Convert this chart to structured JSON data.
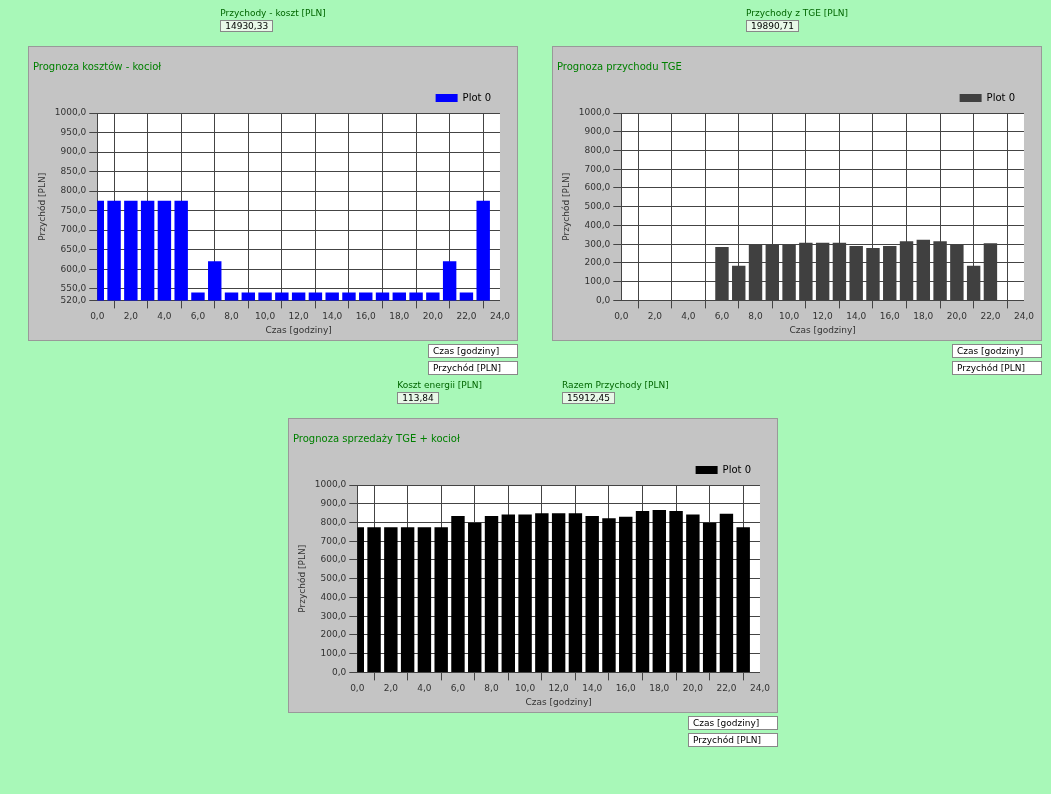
{
  "chart_data": [
    {
      "type": "bar",
      "title": "Prognoza kosztów - kocioł",
      "xlabel": "Czas [godziny]",
      "ylabel": "Przychód [PLN]",
      "annotations": [
        "Przychody - koszt [PLN]",
        "14930,33",
        "Czas [godziny]",
        "Przychód [PLN]"
      ],
      "x": [
        0,
        1,
        2,
        3,
        4,
        5,
        6,
        7,
        8,
        9,
        10,
        11,
        12,
        13,
        14,
        15,
        16,
        17,
        18,
        19,
        20,
        21,
        22,
        23
      ],
      "series": [
        {
          "name": "Plot 0",
          "color": "#0000ff",
          "values": [
            775,
            775,
            775,
            775,
            775,
            775,
            540,
            620,
            540,
            540,
            540,
            540,
            540,
            540,
            540,
            540,
            540,
            540,
            540,
            540,
            540,
            620,
            540,
            775
          ]
        }
      ],
      "xlim": [
        0,
        24
      ],
      "xticks": [
        {
          "value": 0,
          "label": "0,0"
        },
        {
          "value": 2,
          "label": "2,0"
        },
        {
          "value": 4,
          "label": "4,0"
        },
        {
          "value": 6,
          "label": "6,0"
        },
        {
          "value": 8,
          "label": "8,0"
        },
        {
          "value": 10,
          "label": "10,0"
        },
        {
          "value": 12,
          "label": "12,0"
        },
        {
          "value": 14,
          "label": "14,0"
        },
        {
          "value": 16,
          "label": "16,0"
        },
        {
          "value": 18,
          "label": "18,0"
        },
        {
          "value": 20,
          "label": "20,0"
        },
        {
          "value": 22,
          "label": "22,0"
        },
        {
          "value": 24,
          "label": "24,0"
        }
      ],
      "ylim": [
        520,
        1000
      ],
      "yticks": [
        {
          "value": 520,
          "label": "520,0"
        },
        {
          "value": 550,
          "label": "550,0"
        },
        {
          "value": 600,
          "label": "600,0"
        },
        {
          "value": 650,
          "label": "650,0"
        },
        {
          "value": 700,
          "label": "700,0"
        },
        {
          "value": 750,
          "label": "750,0"
        },
        {
          "value": 800,
          "label": "800,0"
        },
        {
          "value": 850,
          "label": "850,0"
        },
        {
          "value": 900,
          "label": "900,0"
        },
        {
          "value": 950,
          "label": "950,0"
        },
        {
          "value": 1000,
          "label": "1000,0"
        }
      ],
      "grid": true,
      "legend": "top right"
    },
    {
      "type": "bar",
      "title": "Prognoza przychodu TGE",
      "xlabel": "Czas [godziny]",
      "ylabel": "Przychód [PLN]",
      "annotations": [
        "Przychody z TGE [PLN]",
        "19890,71",
        "Czas [godziny]",
        "Przychód [PLN]"
      ],
      "x": [
        0,
        1,
        2,
        3,
        4,
        5,
        6,
        7,
        8,
        9,
        10,
        11,
        12,
        13,
        14,
        15,
        16,
        17,
        18,
        19,
        20,
        21,
        22,
        23
      ],
      "series": [
        {
          "name": "Plot 0",
          "color": "#404040",
          "values": [
            0,
            0,
            0,
            0,
            0,
            0,
            285,
            185,
            297,
            297,
            297,
            307,
            307,
            307,
            290,
            280,
            290,
            315,
            323,
            315,
            297,
            185,
            305,
            0
          ]
        }
      ],
      "xlim": [
        0,
        24
      ],
      "xticks": [
        {
          "value": 0,
          "label": "0,0"
        },
        {
          "value": 2,
          "label": "2,0"
        },
        {
          "value": 4,
          "label": "4,0"
        },
        {
          "value": 6,
          "label": "6,0"
        },
        {
          "value": 8,
          "label": "8,0"
        },
        {
          "value": 10,
          "label": "10,0"
        },
        {
          "value": 12,
          "label": "12,0"
        },
        {
          "value": 14,
          "label": "14,0"
        },
        {
          "value": 16,
          "label": "16,0"
        },
        {
          "value": 18,
          "label": "18,0"
        },
        {
          "value": 20,
          "label": "20,0"
        },
        {
          "value": 22,
          "label": "22,0"
        },
        {
          "value": 24,
          "label": "24,0"
        }
      ],
      "ylim": [
        0,
        1000
      ],
      "yticks": [
        {
          "value": 0,
          "label": "0,0"
        },
        {
          "value": 100,
          "label": "100,0"
        },
        {
          "value": 200,
          "label": "200,0"
        },
        {
          "value": 300,
          "label": "300,0"
        },
        {
          "value": 400,
          "label": "400,0"
        },
        {
          "value": 500,
          "label": "500,0"
        },
        {
          "value": 600,
          "label": "600,0"
        },
        {
          "value": 700,
          "label": "700,0"
        },
        {
          "value": 800,
          "label": "800,0"
        },
        {
          "value": 900,
          "label": "900,0"
        },
        {
          "value": 1000,
          "label": "1000,0"
        }
      ],
      "grid": true,
      "legend": "top right"
    },
    {
      "type": "bar",
      "title": "Prognoza sprzedaży TGE + kocioł",
      "xlabel": "Czas [godziny]",
      "ylabel": "Przychód [PLN]",
      "annotations": [
        "Koszt energii [PLN]",
        "113,84",
        "Razem Przychody [PLN]",
        "15912,45",
        "Czas [godziny]",
        "Przychód [PLN]"
      ],
      "x": [
        0,
        1,
        2,
        3,
        4,
        5,
        6,
        7,
        8,
        9,
        10,
        11,
        12,
        13,
        14,
        15,
        16,
        17,
        18,
        19,
        20,
        21,
        22,
        23
      ],
      "series": [
        {
          "name": "Plot 0",
          "color": "#000000",
          "values": [
            774,
            774,
            774,
            774,
            774,
            774,
            834,
            799,
            834,
            842,
            842,
            849,
            849,
            849,
            834,
            823,
            831,
            861,
            867,
            861,
            842,
            799,
            846,
            774
          ]
        }
      ],
      "xlim": [
        0,
        24
      ],
      "xticks": [
        {
          "value": 0,
          "label": "0,0"
        },
        {
          "value": 2,
          "label": "2,0"
        },
        {
          "value": 4,
          "label": "4,0"
        },
        {
          "value": 6,
          "label": "6,0"
        },
        {
          "value": 8,
          "label": "8,0"
        },
        {
          "value": 10,
          "label": "10,0"
        },
        {
          "value": 12,
          "label": "12,0"
        },
        {
          "value": 14,
          "label": "14,0"
        },
        {
          "value": 16,
          "label": "16,0"
        },
        {
          "value": 18,
          "label": "18,0"
        },
        {
          "value": 20,
          "label": "20,0"
        },
        {
          "value": 22,
          "label": "22,0"
        },
        {
          "value": 24,
          "label": "24,0"
        }
      ],
      "ylim": [
        0,
        1000
      ],
      "yticks": [
        {
          "value": 0,
          "label": "0,0"
        },
        {
          "value": 100,
          "label": "100,0"
        },
        {
          "value": 200,
          "label": "200,0"
        },
        {
          "value": 300,
          "label": "300,0"
        },
        {
          "value": 400,
          "label": "400,0"
        },
        {
          "value": 500,
          "label": "500,0"
        },
        {
          "value": 600,
          "label": "600,0"
        },
        {
          "value": 700,
          "label": "700,0"
        },
        {
          "value": 800,
          "label": "800,0"
        },
        {
          "value": 900,
          "label": "900,0"
        },
        {
          "value": 1000,
          "label": "1000,0"
        }
      ],
      "grid": true,
      "legend": "top right"
    }
  ]
}
